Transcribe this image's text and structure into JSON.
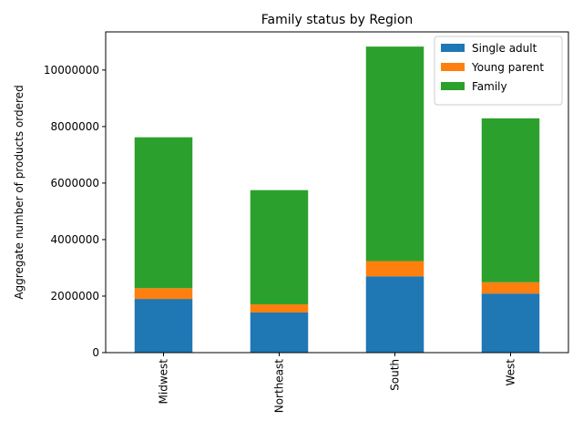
{
  "chart_data": {
    "type": "bar",
    "stacked": true,
    "title": "Family status by Region",
    "xlabel": "",
    "ylabel": "Aggregate number of products ordered",
    "categories": [
      "Midwest",
      "Northeast",
      "South",
      "West"
    ],
    "series": [
      {
        "name": "Single adult",
        "color": "#1f77b4",
        "values": [
          1900000,
          1420000,
          2700000,
          2090000
        ]
      },
      {
        "name": "Young parent",
        "color": "#ff7f0e",
        "values": [
          380000,
          290000,
          540000,
          400000
        ]
      },
      {
        "name": "Family",
        "color": "#2ca02c",
        "values": [
          5340000,
          4040000,
          7590000,
          5800000
        ]
      }
    ],
    "ylim": [
      0,
      11350000
    ],
    "yticks": [
      0,
      2000000,
      4000000,
      6000000,
      8000000,
      10000000
    ],
    "ytick_labels": [
      "0",
      "2000000",
      "4000000",
      "6000000",
      "8000000",
      "10000000"
    ],
    "xtick_rotation": "vertical",
    "legend_position": "upper right",
    "grid": false
  }
}
